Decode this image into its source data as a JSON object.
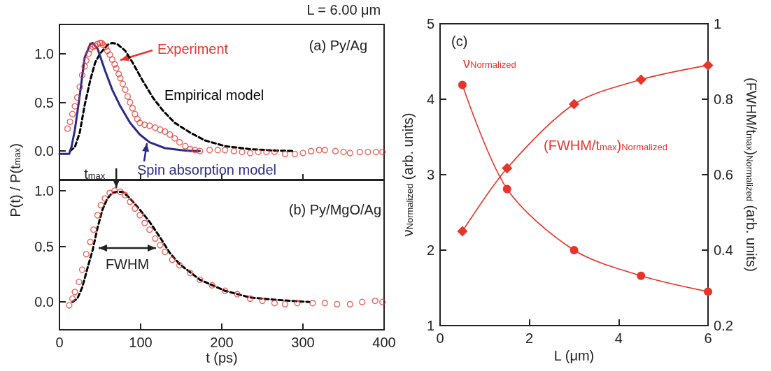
{
  "chart_data": [
    {
      "type": "scatter",
      "title": "(a) Py/Ag",
      "annotations": [
        "L = 6.00 μm"
      ],
      "xlim": [
        0,
        400
      ],
      "xticks": [
        0,
        100,
        200,
        300,
        400
      ],
      "ylim": [
        -0.3,
        1.3
      ],
      "yticks": [
        {
          "value": 0,
          "label": "0.0"
        },
        {
          "value": 0.5,
          "label": "0.5"
        },
        {
          "value": 1,
          "label": "1.0"
        }
      ],
      "tick_labels": "y",
      "series": [
        {
          "name": "Experiment",
          "color": "#e8352b",
          "marker": "circle",
          "x": [
            10,
            13,
            16,
            19,
            22,
            25,
            28,
            31,
            33,
            36,
            38,
            41,
            44,
            47,
            50,
            52,
            54,
            57,
            59,
            62,
            65,
            68,
            70,
            73,
            75,
            78,
            81,
            84,
            87,
            90,
            93,
            96,
            99,
            105,
            111,
            118,
            124,
            130,
            136,
            142,
            148,
            155,
            161,
            167,
            173,
            185,
            195,
            204,
            215,
            225,
            235,
            245,
            255,
            265,
            278,
            290,
            300,
            310,
            320,
            327,
            340,
            350,
            358,
            370,
            380,
            390,
            398
          ],
          "values": [
            0.23,
            0.3,
            0.38,
            0.46,
            0.55,
            0.66,
            0.78,
            0.87,
            0.93,
            1.0,
            1.05,
            1.07,
            1.08,
            1.1,
            1.11,
            1.11,
            1.09,
            1.07,
            1.03,
            0.99,
            0.94,
            0.89,
            0.85,
            0.79,
            0.75,
            0.69,
            0.63,
            0.56,
            0.5,
            0.44,
            0.38,
            0.33,
            0.29,
            0.27,
            0.26,
            0.24,
            0.22,
            0.2,
            0.17,
            0.13,
            0.09,
            0.05,
            0.02,
            0.01,
            0.0,
            0.01,
            0.01,
            0.01,
            0.0,
            -0.01,
            -0.02,
            -0.01,
            -0.01,
            -0.01,
            -0.03,
            -0.03,
            -0.02,
            0.0,
            0.01,
            0.01,
            0.0,
            -0.01,
            -0.02,
            -0.01,
            -0.01,
            -0.01,
            -0.01
          ]
        },
        {
          "name": "Empirical model",
          "type": "line",
          "color": "#000000",
          "line_style": "dashed",
          "marker": "none",
          "x": [
            13,
            19,
            25,
            31,
            38,
            44,
            50,
            59,
            65,
            71,
            81,
            90,
            102,
            115,
            127,
            142,
            161,
            179,
            204,
            235,
            265,
            290
          ],
          "values": [
            0,
            0.04,
            0.19,
            0.47,
            0.73,
            0.91,
            1.0,
            1.09,
            1.11,
            1.1,
            1.03,
            0.91,
            0.73,
            0.55,
            0.42,
            0.29,
            0.19,
            0.11,
            0.05,
            0.02,
            0.005,
            0
          ]
        },
        {
          "name": "Spin absorption model",
          "type": "line",
          "color": "#2b2a8a",
          "line_style": "solid",
          "marker": "none",
          "x": [
            0,
            12,
            15,
            19,
            25,
            31,
            38,
            41,
            47,
            56,
            65,
            75,
            87,
            99,
            111,
            130,
            155,
            173
          ],
          "values": [
            -0.03,
            -0.03,
            0.05,
            0.22,
            0.57,
            0.96,
            1.1,
            1.11,
            1.05,
            0.83,
            0.63,
            0.46,
            0.29,
            0.17,
            0.09,
            0.03,
            0.005,
            0
          ]
        }
      ]
    },
    {
      "type": "scatter",
      "title": "(b) Py/MgO/Ag",
      "xlabel": "t (ps)",
      "ylabel": "P(t) / P(t$_{max}$)",
      "annotations": [
        {
          "text": "t$_{max}$",
          "x": 70,
          "y": 1.0
        },
        "FWHM"
      ],
      "xlim": [
        0,
        400
      ],
      "xticks": [
        0,
        100,
        200,
        300,
        400
      ],
      "ylim": [
        -0.25,
        1.1
      ],
      "yticks": [
        {
          "value": 0,
          "label": "0.0"
        },
        {
          "value": 0.5,
          "label": "0.5"
        },
        {
          "value": 1,
          "label": "1.0"
        }
      ],
      "series": [
        {
          "color": "#e8352b",
          "marker": "circle",
          "x": [
            12,
            16,
            19,
            24,
            28,
            33,
            38,
            42,
            47,
            51,
            56,
            62,
            68,
            75,
            81,
            87,
            93,
            99,
            105,
            111,
            118,
            124,
            130,
            139,
            148,
            161,
            173,
            188,
            204,
            219,
            235,
            250,
            265,
            278,
            293,
            312,
            327,
            342,
            358,
            373,
            389,
            398
          ],
          "values": [
            -0.03,
            0.03,
            0.09,
            0.18,
            0.29,
            0.43,
            0.54,
            0.65,
            0.78,
            0.87,
            0.93,
            0.98,
            1.0,
            0.99,
            0.96,
            0.9,
            0.84,
            0.78,
            0.71,
            0.65,
            0.57,
            0.51,
            0.45,
            0.38,
            0.33,
            0.26,
            0.2,
            0.15,
            0.1,
            0.07,
            0.03,
            0.01,
            -0.01,
            -0.02,
            -0.01,
            -0.01,
            -0.01,
            -0.02,
            -0.02,
            0.0,
            0.01,
            0.0
          ]
        },
        {
          "type": "line",
          "color": "#000000",
          "line_style": "dashed",
          "marker": "none",
          "x": [
            16,
            22,
            28,
            34,
            41,
            47,
            53,
            59,
            65,
            71,
            78,
            87,
            99,
            111,
            124,
            136,
            148,
            173,
            204,
            235,
            265,
            296,
            308
          ],
          "values": [
            0,
            0.03,
            0.13,
            0.29,
            0.47,
            0.67,
            0.83,
            0.93,
            0.98,
            0.99,
            0.99,
            0.93,
            0.83,
            0.72,
            0.58,
            0.44,
            0.34,
            0.2,
            0.1,
            0.04,
            0.02,
            0.005,
            0
          ]
        }
      ]
    },
    {
      "type": "line",
      "title": "(c)",
      "xlabel": "L (μm)",
      "ylabel": "ν$_{Normalized}$ (arb. units)",
      "y2label": "(FWHM/t$_{max}$)$_{Normalized}$ (arb. units)",
      "x": [
        0.5,
        1.5,
        3,
        4.5,
        6
      ],
      "xlim": [
        0,
        6
      ],
      "xticks": [
        0,
        2,
        4,
        6
      ],
      "ylim": [
        1,
        5
      ],
      "yticks": [
        1,
        2,
        3,
        4,
        5
      ],
      "y2lim": [
        0.2,
        1
      ],
      "y2ticks": [
        0.2,
        0.4,
        0.6,
        0.8,
        1
      ],
      "series": [
        {
          "name": "ν$_{Normalized}$",
          "color": "#e8352b",
          "marker": "circle",
          "line_style": "solid",
          "values": [
            4.19,
            2.81,
            2.0,
            1.66,
            1.45
          ]
        },
        {
          "name": "(FWHM/t$_{max}$)$_{Normalized}$",
          "color": "#e8352b",
          "marker": "diamond",
          "line_style": "solid",
          "axis": "y2",
          "values": [
            0.45,
            0.617,
            0.787,
            0.852,
            0.89
          ]
        }
      ]
    }
  ]
}
